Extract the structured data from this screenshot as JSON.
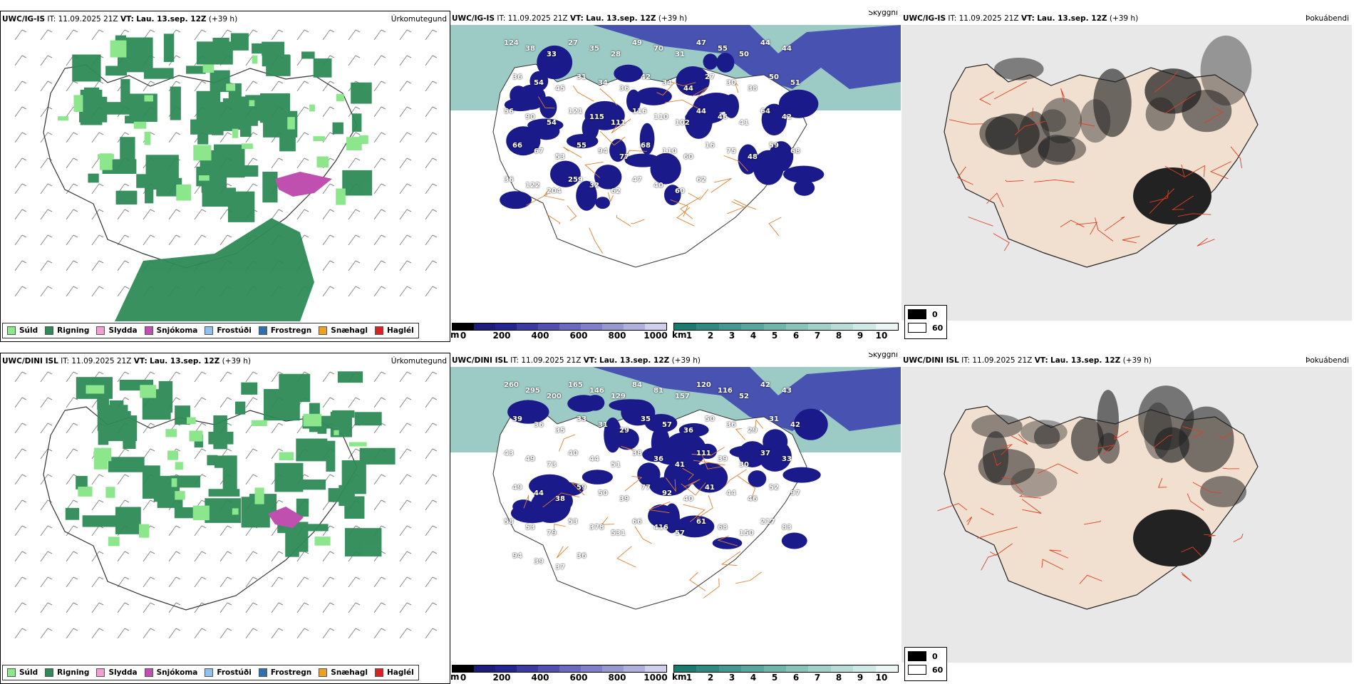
{
  "rows": [
    {
      "model": "UWC/IG-IS",
      "it_label": "IT:",
      "it_value": "11.09.2025 21Z",
      "vt_label": "VT:",
      "vt_value": "Lau. 13.sep. 12Z",
      "lead": "(+39 h)",
      "panels": {
        "precip": "Úrkomutegund",
        "cloud": "Skyggni",
        "fog": "Þokuábendi"
      },
      "ceiling_labels": [
        "124",
        "38",
        "33",
        "27",
        "35",
        "28",
        "49",
        "70",
        "31",
        "47",
        "55",
        "50",
        "44",
        "44",
        "36",
        "54",
        "45",
        "31",
        "34",
        "36",
        "42",
        "34",
        "44",
        "27",
        "30",
        "38",
        "50",
        "51",
        "56",
        "90",
        "54",
        "121",
        "115",
        "111",
        "116",
        "110",
        "102",
        "44",
        "46",
        "41",
        "64",
        "42",
        "66",
        "67",
        "53",
        "55",
        "94",
        "77",
        "68",
        "110",
        "60",
        "16",
        "75",
        "48",
        "59",
        "68",
        "36",
        "122",
        "204",
        "259",
        "32",
        "62",
        "47",
        "40",
        "60",
        "62"
      ]
    },
    {
      "model": "UWC/DINI ISL",
      "it_label": "IT:",
      "it_value": "11.09.2025 21Z",
      "vt_label": "VT:",
      "vt_value": "Lau. 13.sep. 12Z",
      "lead": "(+39 h)",
      "panels": {
        "precip": "Úrkomutegund",
        "cloud": "Skyggni",
        "fog": "Þokuábendi"
      },
      "ceiling_labels": [
        "260",
        "295",
        "200",
        "165",
        "146",
        "129",
        "84",
        "81",
        "157",
        "120",
        "116",
        "52",
        "42",
        "43",
        "39",
        "36",
        "35",
        "33",
        "31",
        "29",
        "35",
        "57",
        "36",
        "50",
        "36",
        "29",
        "31",
        "42",
        "43",
        "49",
        "73",
        "40",
        "44",
        "51",
        "38",
        "36",
        "41",
        "111",
        "39",
        "30",
        "37",
        "33",
        "49",
        "44",
        "38",
        "59",
        "50",
        "39",
        "77",
        "92",
        "40",
        "41",
        "44",
        "46",
        "52",
        "97",
        "58",
        "53",
        "79",
        "53",
        "378",
        "531",
        "66",
        "416",
        "57",
        "61",
        "68",
        "150",
        "217",
        "83",
        "94",
        "39",
        "37",
        "36"
      ]
    }
  ],
  "precip_legend": [
    {
      "label": "Súld",
      "color": "#8ce68c"
    },
    {
      "label": "Rigning",
      "color": "#2e8b57"
    },
    {
      "label": "Slydda",
      "color": "#f0a0d0"
    },
    {
      "label": "Snjókoma",
      "color": "#c050b0"
    },
    {
      "label": "Frostúði",
      "color": "#90c0f0"
    },
    {
      "label": "Frostregn",
      "color": "#3070b0"
    },
    {
      "label": "Snæhagl",
      "color": "#f0a020"
    },
    {
      "label": "Haglél",
      "color": "#e02020"
    }
  ],
  "cloud_colorbar": {
    "unit": "m",
    "ticks": [
      "0",
      "200",
      "400",
      "600",
      "800",
      "1000"
    ],
    "colors": [
      "#000000",
      "#1c1c7a",
      "#24248e",
      "#3a3aa0",
      "#5050b0",
      "#6a6ac0",
      "#8080c8",
      "#9898d0",
      "#b0b0dc",
      "#d0d0ec"
    ]
  },
  "vis_colorbar": {
    "unit": "km",
    "ticks": [
      "1",
      "2",
      "3",
      "4",
      "5",
      "6",
      "7",
      "8",
      "9",
      "10"
    ],
    "colors": [
      "#1a7a6e",
      "#2e8a80",
      "#449890",
      "#5aa69e",
      "#70b4ac",
      "#88c2bb",
      "#a0d0ca",
      "#b8ddd8",
      "#d0e9e6",
      "#eaf5f4"
    ]
  },
  "fog_legend": [
    {
      "label": "0",
      "color": "#000000"
    },
    {
      "label": "60",
      "color": "#ffffff"
    }
  ]
}
